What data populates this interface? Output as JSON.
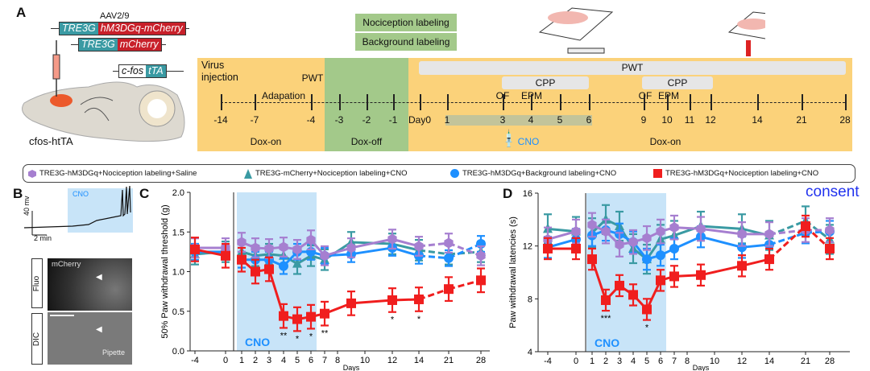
{
  "panels": {
    "a": "A",
    "b": "B",
    "c": "C",
    "d": "D"
  },
  "panelA": {
    "vector": "AAV2/9",
    "construct1": [
      "TRE3G",
      "hM3DGq-mCherry"
    ],
    "construct2": [
      "TRE3G",
      "mCherry"
    ],
    "construct3": [
      "c-fos",
      "tTA"
    ],
    "mouse": "cfos-htTA",
    "labeling": [
      "Nociception labeling",
      "Background labeling"
    ],
    "timeline": {
      "ticks": [
        "-14",
        "-7",
        "-4",
        "-3",
        "-2",
        "-1",
        "Day0",
        "1",
        "3",
        "4",
        "5",
        "6",
        "9",
        "10",
        "11",
        "12",
        "14",
        "21",
        "28"
      ],
      "virus": "Virus injection",
      "adaptation": "Adapation",
      "pwt_pre": "PWT",
      "pwt": "PWT",
      "cpp1": "CPP",
      "cpp2": "CPP",
      "of1": "OF",
      "epm1": "EPM",
      "of2": "OF",
      "epm2": "EPM",
      "dox_on1": "Dox-on",
      "dox_off": "Dox-off",
      "dox_on2": "Dox-on",
      "cno": "CNO"
    },
    "colors": {
      "doxOn": "#fbd27a",
      "doxOff": "#a3c98a",
      "cnoWindow": "#c3c49a"
    }
  },
  "legend": [
    {
      "label": "TRE3G-hM3DGq+Nociception labeling+Saline",
      "color": "#a67fd0",
      "marker": "hexagon"
    },
    {
      "label": "TRE3G-mCherry+Nociception labeling+CNO",
      "color": "#3a9aa3",
      "marker": "triangle"
    },
    {
      "label": "TRE3G-hM3DGq+Background labeling+CNO",
      "color": "#1e90ff",
      "marker": "circle"
    },
    {
      "label": "TRE3G-hM3DGq+Nociception labeling+CNO",
      "color": "#f01e1e",
      "marker": "square"
    }
  ],
  "panelB": {
    "cno": "CNO",
    "scale_v": "40 mv",
    "scale_t": "2 min",
    "fluo": "Fluo",
    "dic": "DIC",
    "mcherry": "mCherry",
    "pipette": "Pipette"
  },
  "chart_data": [
    {
      "type": "line",
      "ylabel": "50% Paw withdrawal threshold (g)",
      "xlabel": "Days",
      "ylim": [
        0,
        2
      ],
      "yticks": [
        "0.0",
        "0.5",
        "1.0",
        "1.5",
        "2.0"
      ],
      "ytick_values": [
        0,
        0.5,
        1,
        1.5,
        2
      ],
      "x": [
        -4,
        0,
        1,
        2,
        3,
        4,
        5,
        6,
        7,
        9,
        12,
        14,
        21,
        28
      ],
      "xticks": [
        "-4",
        "0",
        "1",
        "2",
        "3",
        "4",
        "5",
        "6",
        "7",
        "8",
        "10",
        "12",
        "14",
        "21",
        "28"
      ],
      "shade": {
        "label": "CNO",
        "from": 1,
        "to": 6
      },
      "series": [
        {
          "color": "#3a9aa3",
          "values": [
            1.22,
            1.25,
            1.25,
            1.2,
            1.22,
            1.2,
            1.1,
            1.2,
            1.15,
            1.37,
            1.35,
            1.27,
            1.22,
            1.25
          ],
          "err": 0.13
        },
        {
          "color": "#1e90ff",
          "values": [
            1.25,
            1.25,
            1.15,
            1.15,
            1.15,
            1.07,
            1.25,
            1.25,
            1.2,
            1.22,
            1.3,
            1.2,
            1.17,
            1.35
          ],
          "err": 0.1
        },
        {
          "color": "#a67fd0",
          "values": [
            1.3,
            1.3,
            1.37,
            1.3,
            1.29,
            1.31,
            1.28,
            1.4,
            1.2,
            1.3,
            1.41,
            1.32,
            1.36,
            1.2
          ],
          "err": 0.12
        },
        {
          "color": "#f01e1e",
          "values": [
            1.28,
            1.2,
            1.15,
            1.0,
            1.03,
            0.44,
            0.4,
            0.43,
            0.47,
            0.6,
            0.64,
            0.65,
            0.78,
            0.89
          ],
          "err": 0.15
        }
      ],
      "annotations": [
        {
          "x": 4,
          "text": "**"
        },
        {
          "x": 5,
          "text": "*"
        },
        {
          "x": 6,
          "text": "*"
        },
        {
          "x": 7,
          "text": "**"
        },
        {
          "x": 12,
          "text": "*"
        },
        {
          "x": 14,
          "text": "*"
        }
      ]
    },
    {
      "type": "line",
      "ylabel": "Paw withdrawal latencies (s)",
      "xlabel": "Days",
      "ylim": [
        4,
        16
      ],
      "yticks": [
        "4",
        "8",
        "12",
        "16"
      ],
      "ytick_values": [
        4,
        8,
        12,
        16
      ],
      "x": [
        -4,
        0,
        1,
        2,
        3,
        4,
        5,
        6,
        7,
        9,
        12,
        14,
        21,
        28
      ],
      "xticks": [
        "-4",
        "0",
        "1",
        "2",
        "3",
        "4",
        "5",
        "6",
        "7",
        "8",
        "10",
        "12",
        "14",
        "21",
        "28"
      ],
      "shade": {
        "label": "CNO",
        "from": 1,
        "to": 6
      },
      "series": [
        {
          "color": "#3a9aa3",
          "values": [
            13.3,
            13.1,
            13,
            14,
            13.5,
            11.8,
            11,
            12.5,
            12.8,
            13.5,
            13.3,
            12.8,
            13.9,
            12.5
          ],
          "err": 1.1
        },
        {
          "color": "#1e90ff",
          "values": [
            11.9,
            12.5,
            12.8,
            13.2,
            12.9,
            12.3,
            11,
            11.3,
            11.8,
            12.7,
            11.9,
            12.1,
            13,
            13.1
          ],
          "err": 0.8
        },
        {
          "color": "#a67fd0",
          "values": [
            12.5,
            13.1,
            13.6,
            13.1,
            12.1,
            12.3,
            12.6,
            13.1,
            13.4,
            13.3,
            12.9,
            12.9,
            13.2,
            13.2
          ],
          "err": 0.9
        },
        {
          "color": "#f01e1e",
          "values": [
            11.8,
            11.8,
            11,
            7.9,
            9,
            8.3,
            7.2,
            9.4,
            9.7,
            9.8,
            10.5,
            11,
            13.5,
            11.8
          ],
          "err": 0.8
        }
      ],
      "annotations": [
        {
          "x": 2,
          "text": "***"
        },
        {
          "x": 5,
          "text": "*"
        }
      ]
    }
  ],
  "consent": "consent"
}
